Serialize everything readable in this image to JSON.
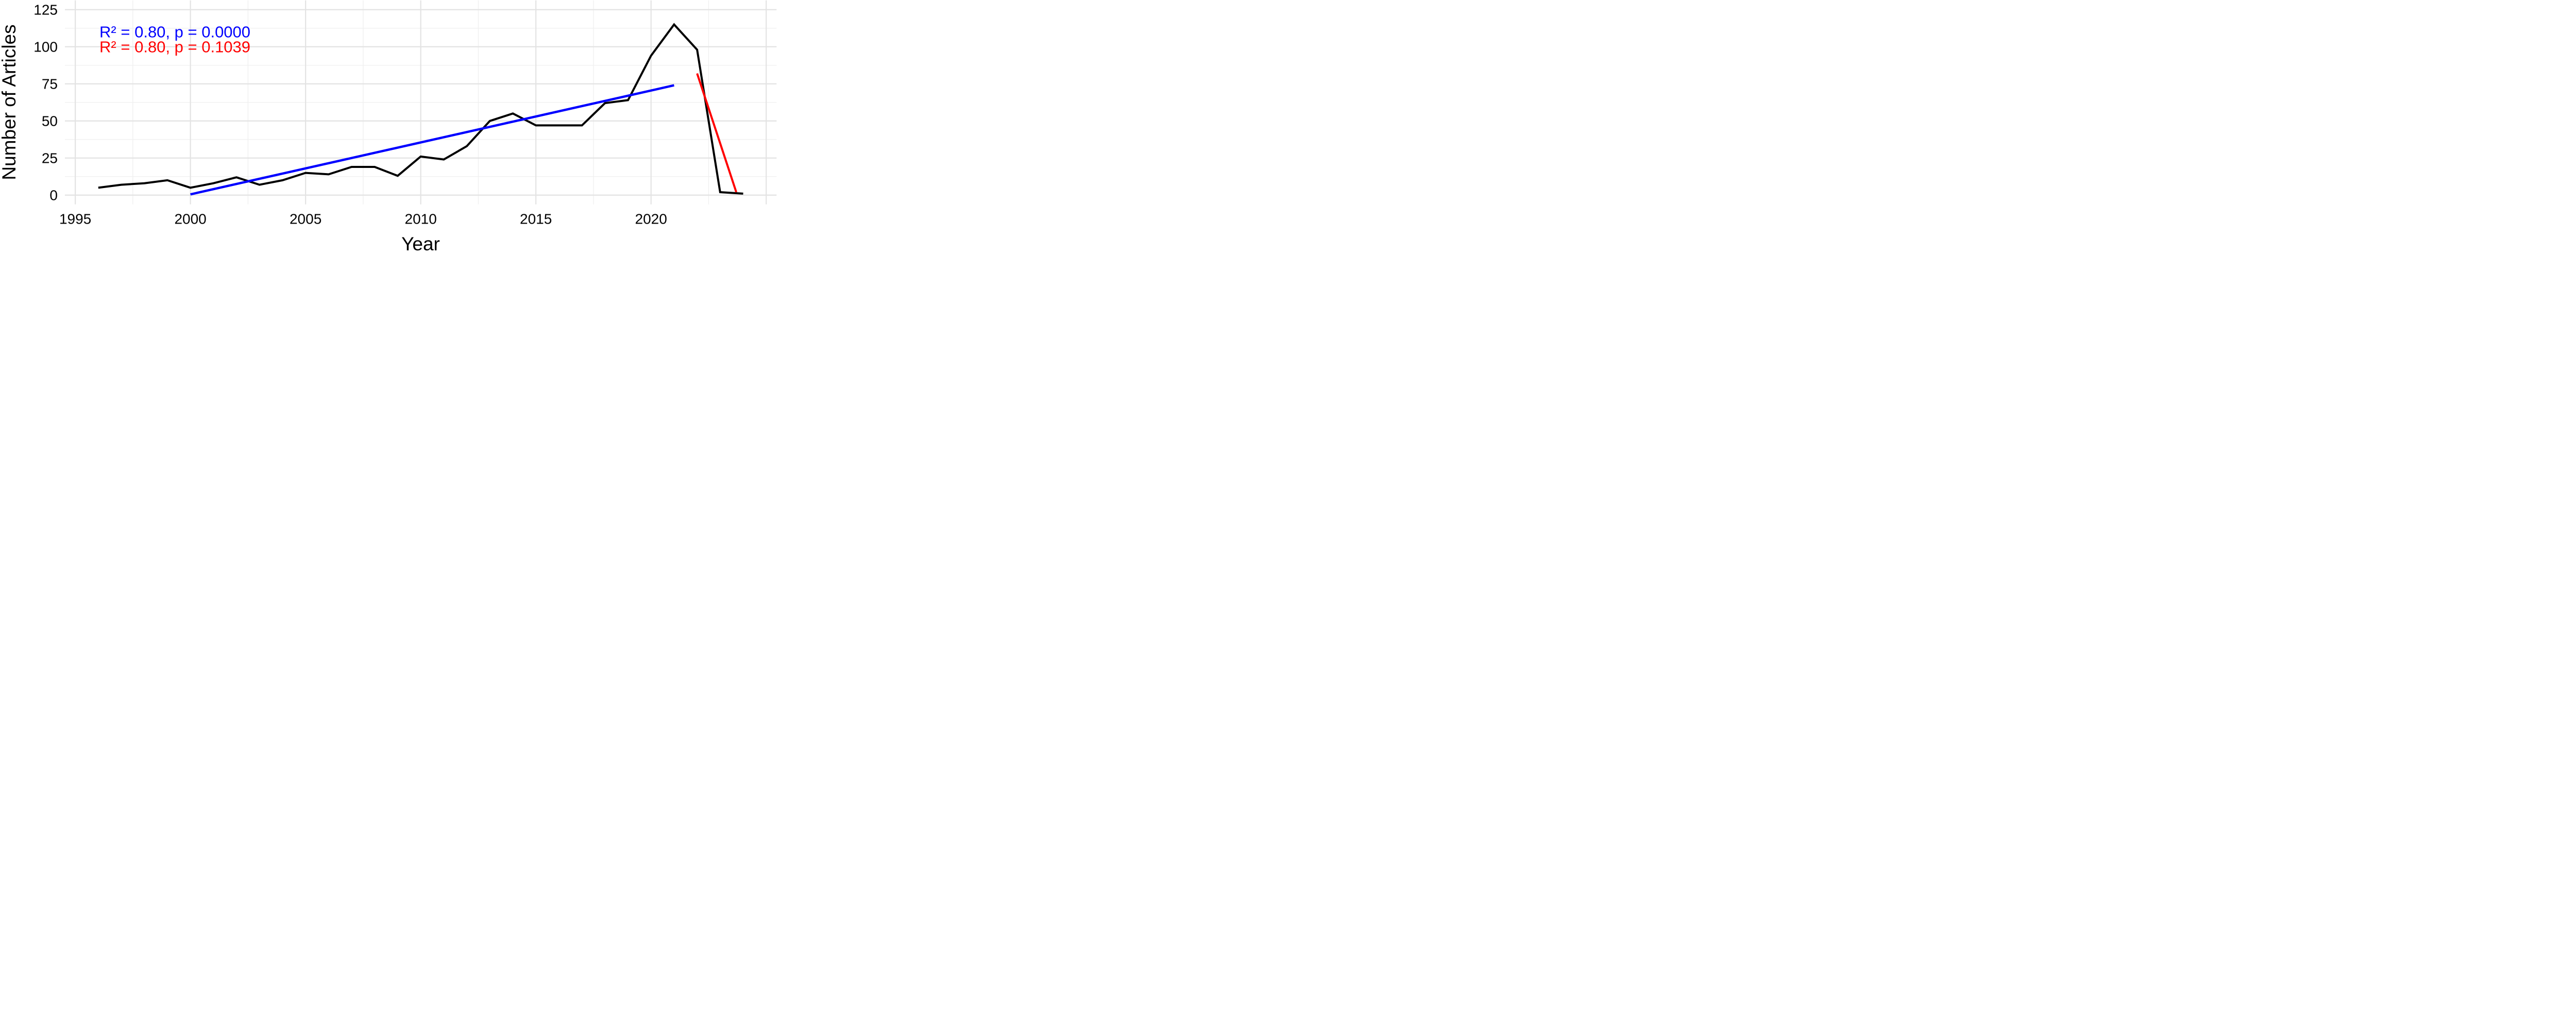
{
  "figure": {
    "background": "#FFFFFF",
    "plot_bg": "#FFFFFF"
  },
  "chart_data": {
    "type": "line",
    "title": "",
    "xlabel": "Year",
    "ylabel": "Number of Articles",
    "x_tick_labels": [
      "1995",
      "2000",
      "2005",
      "2010",
      "2015",
      "2020"
    ],
    "x_tick_values": [
      1995,
      2000,
      2005,
      2010,
      2015,
      2020
    ],
    "y_tick_labels": [
      "0",
      "25",
      "50",
      "75",
      "100",
      "125"
    ],
    "y_tick_values": [
      0,
      25,
      50,
      75,
      100,
      125
    ],
    "xlim": [
      1994.55,
      2025.45
    ],
    "ylim": [
      -6.25,
      131.25
    ],
    "grid": {
      "on": true,
      "major_x": [
        1995,
        2000,
        2005,
        2010,
        2015,
        2020,
        2025
      ],
      "minor_x": [
        1997.5,
        2002.5,
        2007.5,
        2012.5,
        2017.5,
        2022.5
      ],
      "major_y": [
        0,
        25,
        50,
        75,
        100,
        125
      ],
      "minor_y": [
        12.5,
        37.5,
        62.5,
        87.5,
        112.5
      ],
      "major_color": "#E3E3E3",
      "minor_color": "#EFEFEF"
    },
    "axis_text_color": "#000000",
    "legend": "none",
    "series": [
      {
        "name": "articles-per-year",
        "color": "#000000",
        "stroke_px": 4,
        "x": [
          1996,
          1997,
          1998,
          1999,
          2000,
          2001,
          2002,
          2003,
          2004,
          2005,
          2006,
          2007,
          2008,
          2009,
          2010,
          2011,
          2012,
          2013,
          2014,
          2015,
          2016,
          2017,
          2018,
          2019,
          2020,
          2021,
          2022,
          2023,
          2024
        ],
        "y": [
          5,
          7,
          8,
          10,
          5,
          8,
          12,
          7,
          10,
          15,
          14,
          19,
          19,
          13,
          26,
          24,
          33,
          50,
          55,
          47,
          47,
          47,
          62,
          64,
          94,
          115,
          98,
          2,
          1
        ]
      },
      {
        "name": "linear-trend-blue",
        "color": "#0000FF",
        "stroke_px": 4.5,
        "x": [
          2000,
          2021
        ],
        "y": [
          0.5,
          74
        ]
      },
      {
        "name": "linear-trend-red",
        "color": "#FF0000",
        "stroke_px": 4,
        "x": [
          2022,
          2023.7
        ],
        "y": [
          82,
          2
        ]
      }
    ],
    "annotations": [
      {
        "name": "annotation-blue",
        "text": "R² = 0.80, p = 0.0000",
        "color": "#0000FF",
        "x": 1996.05,
        "y": 110,
        "font_px": 31
      },
      {
        "name": "annotation-red",
        "text": "R² = 0.80, p = 0.1039",
        "color": "#FF0000",
        "x": 1996.05,
        "y": 100,
        "font_px": 31
      }
    ],
    "tick_font_px": 28,
    "axis_title_font_px": 37
  }
}
